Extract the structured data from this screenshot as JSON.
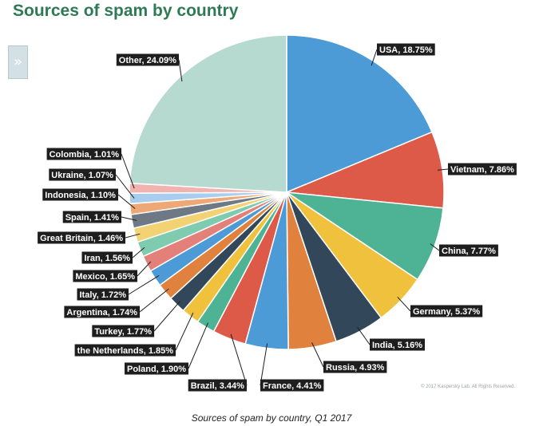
{
  "header": {
    "title": "Sources of spam by country",
    "expand_icon": "double-chevron-right-icon",
    "expand_glyph": "»"
  },
  "chart_data": {
    "type": "pie",
    "title": "Sources of spam by country",
    "start": "12 o'clock",
    "direction": "clockwise",
    "slices": [
      {
        "label": "USA",
        "value": 18.75,
        "color": "#4c9bd6",
        "display": "USA, 18.75%"
      },
      {
        "label": "Vietnam",
        "value": 7.86,
        "color": "#de5a48",
        "display": "Vietnam, 7.86%"
      },
      {
        "label": "China",
        "value": 7.77,
        "color": "#4db394",
        "display": "China, 7.77%"
      },
      {
        "label": "Germany",
        "value": 5.37,
        "color": "#efc13c",
        "display": "Germany, 5.37%"
      },
      {
        "label": "India",
        "value": 5.16,
        "color": "#33475a",
        "display": "India, 5.16%"
      },
      {
        "label": "Russia",
        "value": 4.93,
        "color": "#e0823e",
        "display": "Russia, 4.93%"
      },
      {
        "label": "France",
        "value": 4.41,
        "color": "#4c9bd6",
        "display": "France, 4.41%"
      },
      {
        "label": "Brazil",
        "value": 3.44,
        "color": "#de5a48",
        "display": "Brazil, 3.44%"
      },
      {
        "label": "Poland",
        "value": 1.9,
        "color": "#4db394",
        "display": "Poland, 1.90%"
      },
      {
        "label": "the Netherlands",
        "value": 1.85,
        "color": "#efc13c",
        "display": "the Netherlands, 1.85%"
      },
      {
        "label": "Turkey",
        "value": 1.77,
        "color": "#33475a",
        "display": "Turkey, 1.77%"
      },
      {
        "label": "Argentina",
        "value": 1.74,
        "color": "#e0823e",
        "display": "Argentina, 1.74%"
      },
      {
        "label": "Italy",
        "value": 1.72,
        "color": "#4c9bd6",
        "display": "Italy, 1.72%"
      },
      {
        "label": "Mexico",
        "value": 1.65,
        "color": "#e4807a",
        "display": "Mexico, 1.65%"
      },
      {
        "label": "Iran",
        "value": 1.56,
        "color": "#7fcbb0",
        "display": "Iran, 1.56%"
      },
      {
        "label": "Great Britain",
        "value": 1.46,
        "color": "#f3d274",
        "display": "Great Britain, 1.46%"
      },
      {
        "label": "Spain",
        "value": 1.41,
        "color": "#6f7985",
        "display": "Spain, 1.41%"
      },
      {
        "label": "Indonesia",
        "value": 1.1,
        "color": "#eda876",
        "display": "Indonesia, 1.10%"
      },
      {
        "label": "Ukraine",
        "value": 1.07,
        "color": "#a9cdee",
        "display": "Ukraine, 1.07%"
      },
      {
        "label": "Colombia",
        "value": 1.01,
        "color": "#f0b3b0",
        "display": "Colombia, 1.01%"
      },
      {
        "label": "Other",
        "value": 24.09,
        "color": "#b6d9d0",
        "display": "Other, 24.09%"
      }
    ]
  },
  "copyright": "© 2017 Kaspersky Lab. All Rights Reserved.",
  "caption": "Sources of spam by country, Q1 2017"
}
